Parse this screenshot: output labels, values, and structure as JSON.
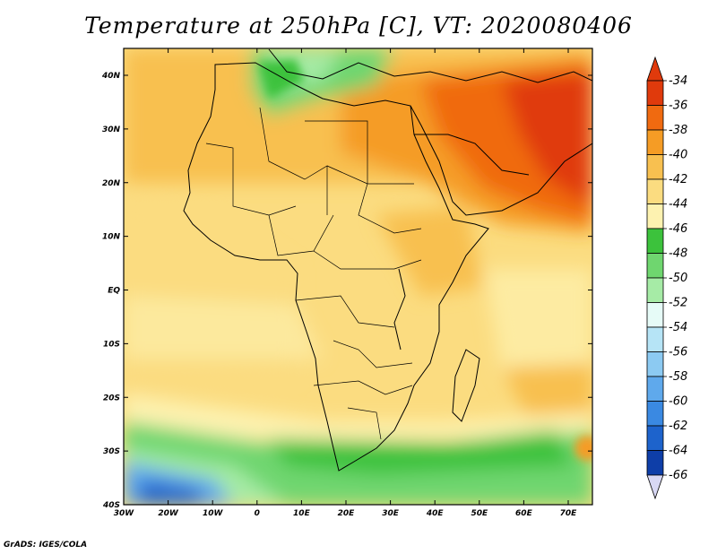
{
  "title": "Temperature at 250hPa [C], VT: 2020080406",
  "credit": "GrADS: IGES/COLA",
  "lat_ticks": [
    "40N",
    "30N",
    "20N",
    "10N",
    "EQ",
    "10S",
    "20S",
    "30S",
    "40S"
  ],
  "lon_ticks": [
    "30W",
    "20W",
    "10W",
    "0",
    "10E",
    "20E",
    "30E",
    "40E",
    "50E",
    "60E",
    "70E"
  ],
  "colorbar": {
    "labels": [
      "-34",
      "-36",
      "-38",
      "-40",
      "-42",
      "-44",
      "-46",
      "-48",
      "-50",
      "-52",
      "-54",
      "-56",
      "-58",
      "-60",
      "-62",
      "-64",
      "-66"
    ],
    "colors": [
      "#e03a0c",
      "#f06a10",
      "#f59c25",
      "#f8c050",
      "#fbdc80",
      "#fdf2b0",
      "#3cc23c",
      "#6fd66f",
      "#a6eba6",
      "#e6fbf7",
      "#b6e4f6",
      "#8ccaf2",
      "#5fa9ec",
      "#3a89e2",
      "#1d63cc",
      "#0e3ea8",
      "#0a1d72"
    ],
    "top_arrow_color": "#e03a0c",
    "bottom_arrow_color": "#d8d8f4"
  }
}
